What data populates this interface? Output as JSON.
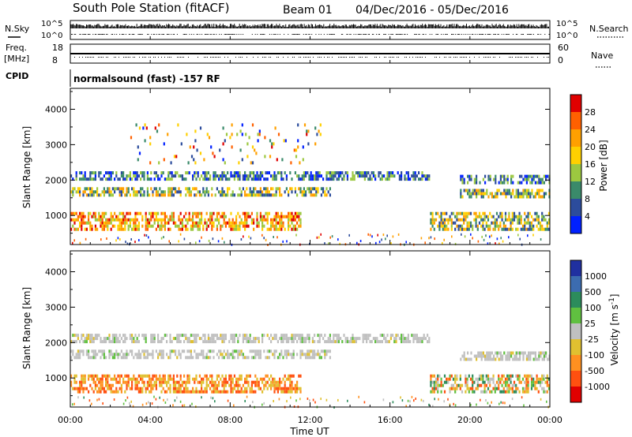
{
  "title": "South Pole Station (fitACF)",
  "beam": "Beam 01",
  "date_range": "04/Dec/2016 - 05/Dec/2016",
  "mode": "normalsound (fast) -157 RF",
  "x_axis": {
    "label": "Time UT",
    "ticks": [
      "00:00",
      "04:00",
      "08:00",
      "12:00",
      "16:00",
      "20:00",
      "00:00"
    ],
    "range_hours": [
      0,
      24
    ]
  },
  "top_panels": {
    "nsky": {
      "label": "N.Sky",
      "ticks": [
        "10^5",
        "10^0"
      ]
    },
    "nsearch": {
      "label": "N.Search",
      "ticks": [
        "10^5",
        "10^0"
      ]
    },
    "freq": {
      "label_line1": "Freq.",
      "label_line2": "[MHz]",
      "ticks": [
        "18",
        "8"
      ]
    },
    "nave": {
      "label": "Nave",
      "ticks": [
        "60",
        "0"
      ]
    },
    "cpid": {
      "label": "CPID"
    }
  },
  "chart_data": [
    {
      "type": "heatmap",
      "name": "power",
      "ylabel": "Slant Range [km]",
      "yticks": [
        1000,
        2000,
        3000,
        4000
      ],
      "ylim": [
        180,
        4590
      ],
      "xlim": [
        0,
        24
      ],
      "colorbar": {
        "label": "Power [dB]",
        "ticks": [
          "28",
          "24",
          "20",
          "16",
          "12",
          "8",
          "4"
        ]
      },
      "echo_bands": [
        {
          "t0": 0.0,
          "t1": 18.0,
          "r0": 2000,
          "r1": 2250,
          "level": "low"
        },
        {
          "t0": 0.0,
          "t1": 13.0,
          "r0": 1550,
          "r1": 1800,
          "level": "medium"
        },
        {
          "t0": 0.0,
          "t1": 11.5,
          "r0": 600,
          "r1": 1100,
          "level": "high"
        },
        {
          "t0": 18.0,
          "t1": 24.0,
          "r0": 600,
          "r1": 1100,
          "level": "medium"
        },
        {
          "t0": 19.5,
          "t1": 24.0,
          "r0": 1500,
          "r1": 1750,
          "level": "medium"
        },
        {
          "t0": 19.5,
          "t1": 24.0,
          "r0": 1950,
          "r1": 2150,
          "level": "low"
        },
        {
          "t0": 3.0,
          "t1": 12.5,
          "r0": 2500,
          "r1": 3600,
          "level": "sparse"
        }
      ]
    },
    {
      "type": "heatmap",
      "name": "velocity",
      "ylabel": "Slant Range [km]",
      "yticks": [
        1000,
        2000,
        3000,
        4000
      ],
      "ylim": [
        180,
        4590
      ],
      "xlim": [
        0,
        24
      ],
      "colorbar": {
        "label": "Velocity [m s^-1]",
        "ticks": [
          "1000",
          "500",
          "100",
          "25",
          "-25",
          "-100",
          "-500",
          "-1000"
        ]
      },
      "echo_bands": [
        {
          "t0": 0.0,
          "t1": 18.0,
          "r0": 2000,
          "r1": 2250,
          "level": "near-zero"
        },
        {
          "t0": 0.0,
          "t1": 13.0,
          "r0": 1550,
          "r1": 1800,
          "level": "near-zero"
        },
        {
          "t0": 0.0,
          "t1": 11.5,
          "r0": 600,
          "r1": 1100,
          "level": "negative"
        },
        {
          "t0": 18.0,
          "t1": 24.0,
          "r0": 600,
          "r1": 1100,
          "level": "mixed"
        },
        {
          "t0": 19.5,
          "t1": 24.0,
          "r0": 1500,
          "r1": 1750,
          "level": "near-zero"
        }
      ]
    }
  ],
  "colors": {
    "power_scale": [
      "#e00000",
      "#ff6000",
      "#ffa000",
      "#ffd000",
      "#9cc840",
      "#3a8a6a",
      "#2c4c9c",
      "#0020ff"
    ],
    "velocity_scale": [
      "#2030a0",
      "#3c6cb0",
      "#2c8c5c",
      "#60c040",
      "#c0c0c0",
      "#e0c030",
      "#ff9020",
      "#ff5010",
      "#e00000"
    ]
  }
}
